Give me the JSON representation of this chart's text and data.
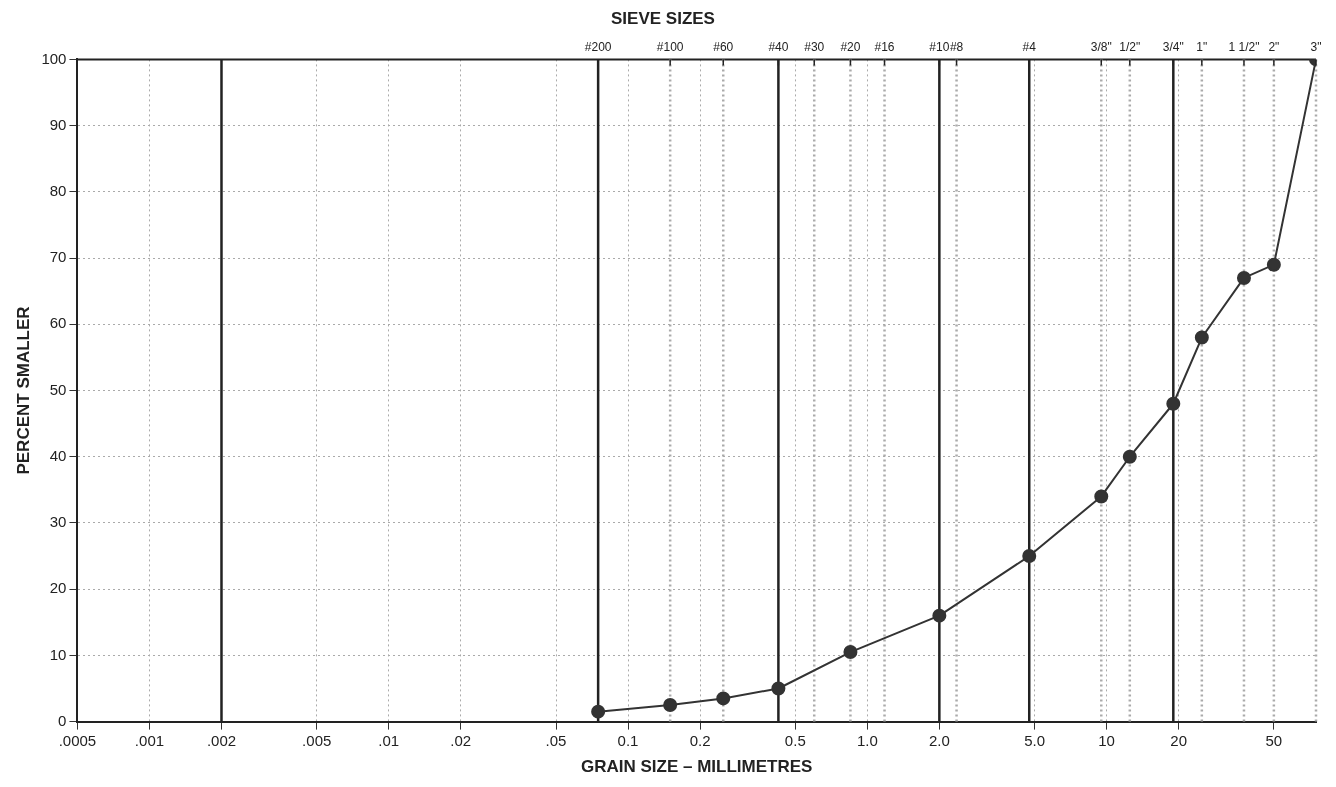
{
  "chart_data": {
    "type": "line",
    "title": "SIEVE SIZES",
    "xlabel": "GRAIN SIZE – MILLIMETRES",
    "ylabel": "PERCENT SMALLER",
    "log": "x",
    "xlim": [
      0.0005,
      75
    ],
    "ylim": [
      0,
      100
    ],
    "xticks": [
      {
        "value": 0.0005,
        "label": ".0005"
      },
      {
        "value": 0.001,
        "label": ".001"
      },
      {
        "value": 0.002,
        "label": ".002"
      },
      {
        "value": 0.005,
        "label": ".005"
      },
      {
        "value": 0.01,
        "label": ".01"
      },
      {
        "value": 0.02,
        "label": ".02"
      },
      {
        "value": 0.05,
        "label": ".05"
      },
      0.1,
      0.2,
      0.5,
      {
        "value": 1,
        "label": "1.0"
      },
      {
        "value": 2,
        "label": "2.0"
      },
      {
        "value": 5,
        "label": "5.0"
      },
      10,
      20,
      50
    ],
    "yticks": [
      0,
      10,
      20,
      30,
      40,
      50,
      60,
      70,
      80,
      90,
      100
    ],
    "grid": true,
    "marker": "circle",
    "line_style": "solid",
    "ref_lines": [
      {
        "axis": "x",
        "value": 0.002,
        "color": "#222222"
      },
      {
        "axis": "x",
        "value": 0.075,
        "color": "#222222"
      },
      {
        "axis": "x",
        "value": 0.15,
        "color": "#aaaaaa",
        "line_style": "dotted"
      },
      {
        "axis": "x",
        "value": 0.25,
        "color": "#aaaaaa",
        "line_style": "dotted"
      },
      {
        "axis": "x",
        "value": 0.425,
        "color": "#222222"
      },
      {
        "axis": "x",
        "value": 0.6,
        "color": "#aaaaaa",
        "line_style": "dotted"
      },
      {
        "axis": "x",
        "value": 0.85,
        "color": "#aaaaaa",
        "line_style": "dotted"
      },
      {
        "axis": "x",
        "value": 1.18,
        "color": "#aaaaaa",
        "line_style": "dotted"
      },
      {
        "axis": "x",
        "value": 2,
        "color": "#222222"
      },
      {
        "axis": "x",
        "value": 2.36,
        "color": "#aaaaaa",
        "line_style": "dotted"
      },
      {
        "axis": "x",
        "value": 4.75,
        "color": "#222222"
      },
      {
        "axis": "x",
        "value": 9.5,
        "color": "#aaaaaa",
        "line_style": "dotted"
      },
      {
        "axis": "x",
        "value": 12.5,
        "color": "#aaaaaa",
        "line_style": "dotted"
      },
      {
        "axis": "x",
        "value": 19,
        "color": "#222222"
      },
      {
        "axis": "x",
        "value": 25,
        "color": "#aaaaaa",
        "line_style": "dotted"
      },
      {
        "axis": "x",
        "value": 37.5,
        "color": "#aaaaaa",
        "line_style": "dotted"
      },
      {
        "axis": "x",
        "value": 50,
        "color": "#aaaaaa",
        "line_style": "dotted"
      },
      {
        "axis": "x",
        "value": 75,
        "color": "#aaaaaa",
        "line_style": "dotted"
      }
    ],
    "annotations": [
      {
        "text": "#200",
        "x": 0.075,
        "y": 100
      },
      {
        "text": "#100",
        "x": 0.15,
        "y": 100
      },
      {
        "text": "#60",
        "x": 0.25,
        "y": 100
      },
      {
        "text": "#40",
        "x": 0.425,
        "y": 100
      },
      {
        "text": "#30",
        "x": 0.6,
        "y": 100
      },
      {
        "text": "#20",
        "x": 0.85,
        "y": 100
      },
      {
        "text": "#16",
        "x": 1.18,
        "y": 100
      },
      {
        "text": "#10",
        "x": 2,
        "y": 100
      },
      {
        "text": "#8",
        "x": 2.36,
        "y": 100
      },
      {
        "text": "#4",
        "x": 4.75,
        "y": 100
      },
      {
        "text": "3/8\"",
        "x": 9.5,
        "y": 100
      },
      {
        "text": "1/2\"",
        "x": 12.5,
        "y": 100
      },
      {
        "text": "3/4\"",
        "x": 19,
        "y": 100
      },
      {
        "text": "1\"",
        "x": 25,
        "y": 100
      },
      {
        "text": "1 1/2\"",
        "x": 37.5,
        "y": 100
      },
      {
        "text": "2\"",
        "x": 50,
        "y": 100
      },
      {
        "text": "3\"",
        "x": 75,
        "y": 100
      }
    ],
    "x": [
      0.075,
      0.15,
      0.25,
      0.425,
      0.85,
      2,
      4.75,
      9.5,
      12.5,
      19,
      25,
      37.5,
      50,
      75
    ],
    "series": [
      {
        "color": "#333333",
        "values": [
          1.5,
          2.5,
          3.5,
          5,
          10.5,
          16,
          25,
          34,
          40,
          48,
          58,
          67,
          69,
          100
        ]
      }
    ]
  }
}
